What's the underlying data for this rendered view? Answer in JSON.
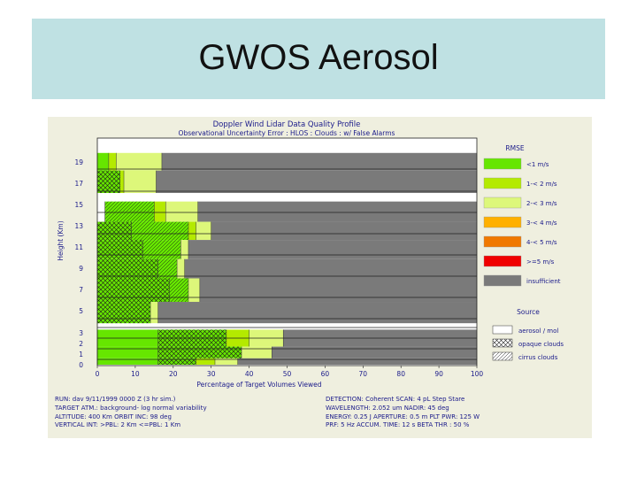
{
  "slide": {
    "title": "GWOS Aerosol"
  },
  "chart_data": {
    "type": "bar",
    "title": "Doppler Wind Lidar Data Quality Profile",
    "subtitle": "Observational Uncertainty Error : HLOS : Clouds : w/ False Alarms",
    "xlabel": "Percentage of Target Volumes Viewed",
    "ylabel": "Height (Km)",
    "xlim": [
      0,
      100
    ],
    "x_ticks": [
      "0",
      "10",
      "20",
      "30",
      "40",
      "50",
      "60",
      "70",
      "80",
      "90",
      "100"
    ],
    "y_ticks": [
      "0",
      "1",
      "2",
      "3",
      "5",
      "7",
      "9",
      "11",
      "13",
      "15",
      "17",
      "19"
    ],
    "categories": [
      "0",
      "1",
      "2",
      "3",
      "5",
      "7",
      "9",
      "11",
      "13",
      "15",
      "17",
      "19"
    ],
    "legend": {
      "rmse_title": "RMSE",
      "rmse": [
        {
          "label": "<1 m/s",
          "color": "#66e600"
        },
        {
          "label": "1-< 2 m/s",
          "color": "#b4ea00"
        },
        {
          "label": "2-< 3 m/s",
          "color": "#ddf77a"
        },
        {
          "label": "3-< 4 m/s",
          "color": "#ffb000"
        },
        {
          "label": "4-< 5 m/s",
          "color": "#f07800"
        },
        {
          "label": ">=5 m/s",
          "color": "#f00000"
        },
        {
          "label": "insufficient",
          "color": "#7a7a7a"
        }
      ],
      "source_title": "Source",
      "source": [
        {
          "label": "aerosol / mol",
          "pattern": "none"
        },
        {
          "label": "opaque clouds",
          "pattern": "crosshatch"
        },
        {
          "label": "cirrus clouds",
          "pattern": "diagonal"
        }
      ]
    },
    "rows": [
      {
        "height": "19",
        "band": [
          19.85,
          18.2
        ],
        "segments": [
          {
            "start": 0,
            "end": 3,
            "color": "#66e600",
            "pattern": "none"
          },
          {
            "start": 3,
            "end": 5,
            "color": "#b4ea00",
            "pattern": "none"
          },
          {
            "start": 5,
            "end": 17,
            "color": "#ddf77a",
            "pattern": "none"
          },
          {
            "start": 17,
            "end": 100,
            "color": "#7a7a7a",
            "pattern": "none"
          }
        ]
      },
      {
        "height": "17",
        "band": [
          18.2,
          16.1
        ],
        "segments": [
          {
            "start": 0,
            "end": 6,
            "color": "#66e600",
            "pattern": "crosshatch"
          },
          {
            "start": 6,
            "end": 7,
            "color": "#b4ea00",
            "pattern": "none"
          },
          {
            "start": 7,
            "end": 15.5,
            "color": "#ddf77a",
            "pattern": "none"
          },
          {
            "start": 15.5,
            "end": 100,
            "color": "#7a7a7a",
            "pattern": "none"
          }
        ]
      },
      {
        "height": "15",
        "band": [
          15.3,
          13.4
        ],
        "segments": [
          {
            "start": 2,
            "end": 15,
            "color": "#66e600",
            "pattern": "diagonal"
          },
          {
            "start": 15,
            "end": 18,
            "color": "#b4ea00",
            "pattern": "none"
          },
          {
            "start": 18,
            "end": 26.5,
            "color": "#ddf77a",
            "pattern": "none"
          },
          {
            "start": 26.5,
            "end": 100,
            "color": "#7a7a7a",
            "pattern": "none"
          }
        ]
      },
      {
        "height": "13",
        "band": [
          13.4,
          11.7
        ],
        "segments": [
          {
            "start": 0,
            "end": 9,
            "color": "#66e600",
            "pattern": "crosshatch"
          },
          {
            "start": 9,
            "end": 24,
            "color": "#66e600",
            "pattern": "diagonal"
          },
          {
            "start": 24,
            "end": 26,
            "color": "#b4ea00",
            "pattern": "none"
          },
          {
            "start": 26,
            "end": 30,
            "color": "#ddf77a",
            "pattern": "none"
          },
          {
            "start": 30,
            "end": 100,
            "color": "#7a7a7a",
            "pattern": "none"
          }
        ]
      },
      {
        "height": "11",
        "band": [
          11.7,
          9.9
        ],
        "segments": [
          {
            "start": 0,
            "end": 12,
            "color": "#66e600",
            "pattern": "crosshatch"
          },
          {
            "start": 12,
            "end": 22,
            "color": "#66e600",
            "pattern": "diagonal"
          },
          {
            "start": 22,
            "end": 24,
            "color": "#ddf77a",
            "pattern": "none"
          },
          {
            "start": 24,
            "end": 100,
            "color": "#7a7a7a",
            "pattern": "none"
          }
        ]
      },
      {
        "height": "9",
        "band": [
          9.9,
          8.1
        ],
        "segments": [
          {
            "start": 0,
            "end": 16,
            "color": "#66e600",
            "pattern": "crosshatch"
          },
          {
            "start": 16,
            "end": 21,
            "color": "#66e600",
            "pattern": "diagonal"
          },
          {
            "start": 21,
            "end": 23,
            "color": "#ddf77a",
            "pattern": "none"
          },
          {
            "start": 23,
            "end": 100,
            "color": "#7a7a7a",
            "pattern": "none"
          }
        ]
      },
      {
        "height": "7",
        "band": [
          8.1,
          5.9
        ],
        "segments": [
          {
            "start": 0,
            "end": 19,
            "color": "#66e600",
            "pattern": "crosshatch"
          },
          {
            "start": 19,
            "end": 24,
            "color": "#66e600",
            "pattern": "diagonal"
          },
          {
            "start": 24,
            "end": 27,
            "color": "#ddf77a",
            "pattern": "none"
          },
          {
            "start": 27,
            "end": 100,
            "color": "#7a7a7a",
            "pattern": "none"
          }
        ]
      },
      {
        "height": "5",
        "band": [
          5.9,
          3.9
        ],
        "segments": [
          {
            "start": 0,
            "end": 14,
            "color": "#66e600",
            "pattern": "crosshatch"
          },
          {
            "start": 14,
            "end": 16,
            "color": "#ddf77a",
            "pattern": "none"
          },
          {
            "start": 16,
            "end": 100,
            "color": "#7a7a7a",
            "pattern": "none"
          }
        ]
      },
      {
        "height": "3",
        "band": [
          3.3,
          1.7
        ],
        "segments": [
          {
            "start": 0,
            "end": 16,
            "color": "#66e600",
            "pattern": "none"
          },
          {
            "start": 16,
            "end": 34,
            "color": "#66e600",
            "pattern": "crosshatch"
          },
          {
            "start": 34,
            "end": 40,
            "color": "#b4ea00",
            "pattern": "none"
          },
          {
            "start": 40,
            "end": 49,
            "color": "#ddf77a",
            "pattern": "none"
          },
          {
            "start": 49,
            "end": 100,
            "color": "#7a7a7a",
            "pattern": "none"
          }
        ]
      },
      {
        "height": "1",
        "band": [
          1.7,
          0.6
        ],
        "segments": [
          {
            "start": 0,
            "end": 16,
            "color": "#66e600",
            "pattern": "none"
          },
          {
            "start": 16,
            "end": 38,
            "color": "#66e600",
            "pattern": "crosshatch"
          },
          {
            "start": 38,
            "end": 46,
            "color": "#ddf77a",
            "pattern": "none"
          },
          {
            "start": 46,
            "end": 100,
            "color": "#7a7a7a",
            "pattern": "none"
          }
        ]
      },
      {
        "height": "0",
        "band": [
          0.6,
          0.0
        ],
        "segments": [
          {
            "start": 0,
            "end": 16,
            "color": "#66e600",
            "pattern": "none"
          },
          {
            "start": 16,
            "end": 26,
            "color": "#66e600",
            "pattern": "crosshatch"
          },
          {
            "start": 26,
            "end": 31,
            "color": "#b4ea00",
            "pattern": "none"
          },
          {
            "start": 31,
            "end": 37,
            "color": "#ddf77a",
            "pattern": "none"
          },
          {
            "start": 37,
            "end": 100,
            "color": "#7a7a7a",
            "pattern": "none"
          }
        ]
      }
    ]
  },
  "info_left": [
    "RUN:  dav 9/11/1999 0000 Z (3 hr sim.)",
    "TARGET ATM.: background- log normal variability",
    "ALTITUDE: 400 Km    ORBIT INC: 98 deg",
    "VERTICAL INT: >PBL: 2  Km   <=PBL: 1  Km"
  ],
  "info_right": [
    "DETECTION: Coherent   SCAN: 4 pL Step  Stare",
    "WAVELENGTH: 2.052 um     NADIR: 45  deg",
    "ENERGY: 0.25 J    APERTURE: 0.5 m    PLT PWR: 125 W",
    "PRF: 5  Hz    ACCUM. TIME: 12 s    BETA THR : 50 %"
  ]
}
